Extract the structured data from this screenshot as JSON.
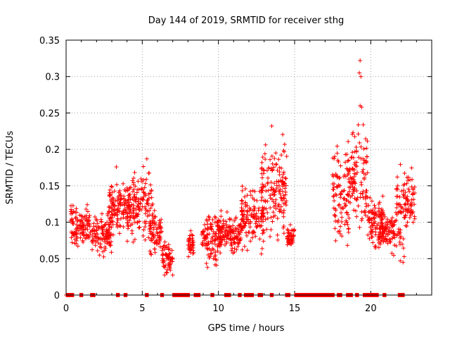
{
  "chart_data": {
    "type": "scatter",
    "title": "Day 144 of 2019, SRMTID for receiver sthg",
    "xlabel": "GPS time / hours",
    "ylabel": "SRMTID / TECUs",
    "xlim": [
      0,
      24
    ],
    "ylim": [
      0,
      0.35
    ],
    "xticks": [
      0,
      5,
      10,
      15,
      20
    ],
    "yticks": [
      0,
      0.05,
      0.1,
      0.15,
      0.2,
      0.25,
      0.3,
      0.35
    ],
    "ytick_labels": [
      "0",
      "0.05",
      "0.1",
      "0.15",
      "0.2",
      "0.25",
      "0.3",
      "0.35"
    ],
    "grid": true,
    "marker": "+",
    "color": "#ff0000",
    "clusters": [
      {
        "x": [
          0.3,
          1.6
        ],
        "y": [
          0.06,
          0.13
        ]
      },
      {
        "x": [
          1.7,
          3.0
        ],
        "y": [
          0.05,
          0.12
        ]
      },
      {
        "x": [
          2.8,
          4.2
        ],
        "y": [
          0.07,
          0.17
        ]
      },
      {
        "x": [
          4.0,
          5.7
        ],
        "y": [
          0.06,
          0.19
        ]
      },
      {
        "x": [
          5.5,
          6.3
        ],
        "y": [
          0.04,
          0.13
        ]
      },
      {
        "x": [
          6.3,
          7.0
        ],
        "y": [
          0.02,
          0.08
        ]
      },
      {
        "x": [
          8.0,
          8.4
        ],
        "y": [
          0.05,
          0.09
        ]
      },
      {
        "x": [
          8.9,
          10.2
        ],
        "y": [
          0.03,
          0.13
        ]
      },
      {
        "x": [
          10.0,
          11.5
        ],
        "y": [
          0.05,
          0.12
        ]
      },
      {
        "x": [
          11.5,
          13.0
        ],
        "y": [
          0.05,
          0.16
        ]
      },
      {
        "x": [
          12.8,
          14.5
        ],
        "y": [
          0.06,
          0.23
        ]
      },
      {
        "x": [
          14.5,
          15.0
        ],
        "y": [
          0.06,
          0.1
        ]
      },
      {
        "x": [
          17.5,
          18.6
        ],
        "y": [
          0.05,
          0.22
        ]
      },
      {
        "x": [
          18.5,
          19.8
        ],
        "y": [
          0.07,
          0.26
        ]
      },
      {
        "x": [
          19.8,
          20.8
        ],
        "y": [
          0.05,
          0.15
        ]
      },
      {
        "x": [
          20.5,
          21.6
        ],
        "y": [
          0.05,
          0.12
        ]
      },
      {
        "x": [
          21.6,
          22.2
        ],
        "y": [
          0.03,
          0.19
        ]
      },
      {
        "x": [
          22.2,
          22.9
        ],
        "y": [
          0.07,
          0.18
        ]
      }
    ],
    "outliers": [
      {
        "x": 19.3,
        "y": 0.322
      },
      {
        "x": 19.25,
        "y": 0.305
      },
      {
        "x": 19.35,
        "y": 0.3
      },
      {
        "x": 19.3,
        "y": 0.26
      },
      {
        "x": 19.4,
        "y": 0.258
      },
      {
        "x": 13.5,
        "y": 0.232
      },
      {
        "x": 3.3,
        "y": 0.176
      },
      {
        "x": 5.3,
        "y": 0.187
      }
    ],
    "zero_segments": [
      [
        0.0,
        0.5
      ],
      [
        0.9,
        1.1
      ],
      [
        1.6,
        1.9
      ],
      [
        3.3,
        3.5
      ],
      [
        3.8,
        4.0
      ],
      [
        5.2,
        5.4
      ],
      [
        6.2,
        6.4
      ],
      [
        7.0,
        8.1
      ],
      [
        8.4,
        8.8
      ],
      [
        9.5,
        9.7
      ],
      [
        10.4,
        10.8
      ],
      [
        11.3,
        11.5
      ],
      [
        11.7,
        12.3
      ],
      [
        12.6,
        12.9
      ],
      [
        13.4,
        13.6
      ],
      [
        14.4,
        14.7
      ],
      [
        15.0,
        17.6
      ],
      [
        17.8,
        18.1
      ],
      [
        18.4,
        18.8
      ],
      [
        19.0,
        19.2
      ],
      [
        19.5,
        20.5
      ],
      [
        20.8,
        21.0
      ],
      [
        21.8,
        22.2
      ]
    ]
  }
}
